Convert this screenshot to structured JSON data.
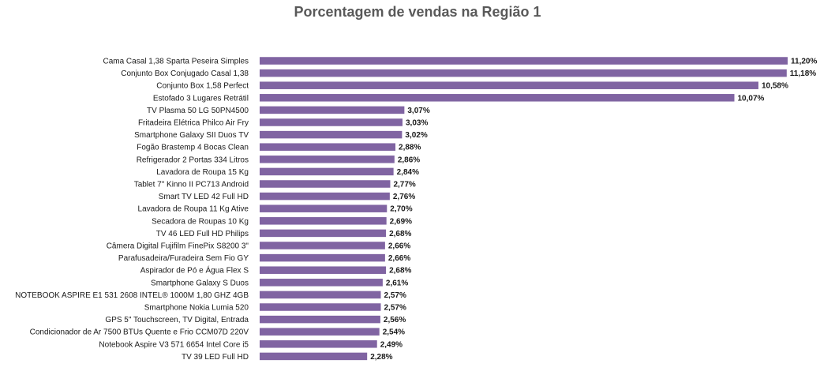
{
  "chart_data": {
    "type": "bar",
    "orientation": "horizontal",
    "title": "Porcentagem de vendas na Região 1",
    "xlabel": "",
    "ylabel": "",
    "grid": false,
    "legend": "none",
    "bar_color": "#8064A2",
    "xlim": [
      0,
      11.2
    ],
    "categories": [
      "Cama Casal 1,38 Sparta Peseira Simples",
      "Conjunto Box Conjugado Casal 1,38",
      "Conjunto Box 1,58 Perfect",
      "Estofado 3 Lugares Retrátil",
      "TV Plasma 50 LG 50PN4500",
      "Fritadeira Elétrica Philco Air Fry",
      "Smartphone Galaxy SII Duos TV",
      "Fogão Brastemp 4 Bocas Clean",
      "Refrigerador 2 Portas 334 Litros",
      "Lavadora de Roupa 15 Kg",
      "Tablet 7\" Kinno II PC713 Android",
      "Smart TV LED 42 Full HD",
      "Lavadora de Roupa 11 Kg Ative",
      "Secadora de Roupas 10 Kg",
      "TV 46 LED Full HD Philips",
      "Câmera Digital Fujifilm FinePix S8200 3\"",
      "Parafusadeira/Furadeira Sem Fio GY",
      "Aspirador de Pó e Água Flex S",
      "Smartphone Galaxy S Duos",
      "NOTEBOOK ASPIRE E1 531 2608 INTEL® 1000M 1,80 GHZ 4GB",
      "Smartphone Nokia Lumia 520",
      "GPS 5\" Touchscreen, TV Digital, Entrada",
      "Condicionador de Ar 7500 BTUs Quente e Frio CCM07D 220V",
      "Notebook Aspire V3 571 6654 Intel Core i5",
      "TV 39 LED Full HD"
    ],
    "values": [
      11.2,
      11.18,
      10.58,
      10.07,
      3.07,
      3.03,
      3.02,
      2.88,
      2.86,
      2.84,
      2.77,
      2.76,
      2.7,
      2.69,
      2.68,
      2.66,
      2.66,
      2.68,
      2.61,
      2.57,
      2.57,
      2.56,
      2.54,
      2.49,
      2.28
    ],
    "value_labels": [
      "11,20%",
      "11,18%",
      "10,58%",
      "10,07%",
      "3,07%",
      "3,03%",
      "3,02%",
      "2,88%",
      "2,86%",
      "2,84%",
      "2,77%",
      "2,76%",
      "2,70%",
      "2,69%",
      "2,68%",
      "2,66%",
      "2,66%",
      "2,68%",
      "2,61%",
      "2,57%",
      "2,57%",
      "2,56%",
      "2,54%",
      "2,49%",
      "2,28%"
    ]
  }
}
